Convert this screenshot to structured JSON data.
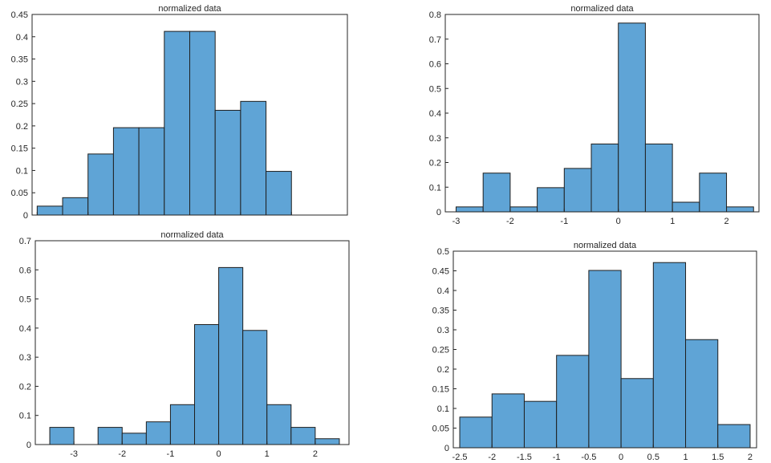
{
  "chart_data": [
    {
      "type": "bar",
      "title": "normalized data",
      "xlim": [
        -3.1,
        3.1
      ],
      "ylim": [
        0,
        0.45
      ],
      "xticks": [
        -3,
        -2,
        -1,
        0,
        1,
        2
      ],
      "xtick_labels": [
        "",
        "",
        "",
        "",
        "",
        ""
      ],
      "yticks": [
        0,
        0.05,
        0.1,
        0.15,
        0.2,
        0.25,
        0.3,
        0.35,
        0.4,
        0.45
      ],
      "ytick_labels": [
        "0",
        "0.05",
        "0.1",
        "0.15",
        "0.2",
        "0.25",
        "0.3",
        "0.35",
        "0.4",
        "0.45"
      ],
      "bin_edges": [
        -3,
        -2.5,
        -2,
        -1.5,
        -1,
        -0.5,
        0,
        0.5,
        1,
        1.5,
        2
      ],
      "values": [
        0.02,
        0.039,
        0.137,
        0.196,
        0.196,
        0.412,
        0.412,
        0.235,
        0.255,
        0.098
      ],
      "grid": false,
      "colors": {
        "bar": "#5fa4d6",
        "edge": "#1f1f1f"
      }
    },
    {
      "type": "bar",
      "title": "normalized data",
      "xlim": [
        -3.2,
        2.6
      ],
      "ylim": [
        0,
        0.8
      ],
      "xticks": [
        -3,
        -2,
        -1,
        0,
        1,
        2
      ],
      "xtick_labels": [
        "-3",
        "-2",
        "-1",
        "0",
        "1",
        "2"
      ],
      "yticks": [
        0,
        0.1,
        0.2,
        0.3,
        0.4,
        0.5,
        0.6,
        0.7,
        0.8
      ],
      "ytick_labels": [
        "0",
        "0.1",
        "0.2",
        "0.3",
        "0.4",
        "0.5",
        "0.6",
        "0.7",
        "0.8"
      ],
      "bin_edges": [
        -3,
        -2.5,
        -2,
        -1.5,
        -1,
        -0.5,
        0,
        0.5,
        1,
        1.5,
        2,
        2.5
      ],
      "values": [
        0.02,
        0.157,
        0.02,
        0.098,
        0.176,
        0.275,
        0.765,
        0.275,
        0.039,
        0.157,
        0.02
      ],
      "grid": false,
      "colors": {
        "bar": "#5fa4d6",
        "edge": "#1f1f1f"
      }
    },
    {
      "type": "bar",
      "title": "normalized data",
      "xlim": [
        -3.8,
        2.7
      ],
      "ylim": [
        0,
        0.7
      ],
      "xticks": [
        -3,
        -2,
        -1,
        0,
        1,
        2
      ],
      "xtick_labels": [
        "-3",
        "-2",
        "-1",
        "0",
        "1",
        "2"
      ],
      "yticks": [
        0,
        0.1,
        0.2,
        0.3,
        0.4,
        0.5,
        0.6,
        0.7
      ],
      "ytick_labels": [
        "0",
        "0.1",
        "0.2",
        "0.3",
        "0.4",
        "0.5",
        "0.6",
        "0.7"
      ],
      "bin_edges": [
        -3.5,
        -3,
        -2.5,
        -2,
        -1.5,
        -1,
        -0.5,
        0,
        0.5,
        1,
        1.5,
        2,
        2.5
      ],
      "values": [
        0.059,
        0,
        0.059,
        0.039,
        0.078,
        0.137,
        0.412,
        0.608,
        0.392,
        0.137,
        0.059,
        0.02
      ],
      "grid": false,
      "colors": {
        "bar": "#5fa4d6",
        "edge": "#1f1f1f"
      }
    },
    {
      "type": "bar",
      "title": "normalized data",
      "xlim": [
        -2.6,
        2.1
      ],
      "ylim": [
        0,
        0.5
      ],
      "xticks": [
        -2.5,
        -2,
        -1.5,
        -1,
        -0.5,
        0,
        0.5,
        1,
        1.5,
        2
      ],
      "xtick_labels": [
        "-2.5",
        "-2",
        "-1.5",
        "-1",
        "-0.5",
        "0",
        "0.5",
        "1",
        "1.5",
        "2"
      ],
      "yticks": [
        0,
        0.05,
        0.1,
        0.15,
        0.2,
        0.25,
        0.3,
        0.35,
        0.4,
        0.45,
        0.5
      ],
      "ytick_labels": [
        "0",
        "0.05",
        "0.1",
        "0.15",
        "0.2",
        "0.25",
        "0.3",
        "0.35",
        "0.4",
        "0.45",
        "0.5"
      ],
      "bin_edges": [
        -2.5,
        -2,
        -1.5,
        -1,
        -0.5,
        0,
        0.5,
        1,
        1.5,
        2
      ],
      "values": [
        0.078,
        0.137,
        0.118,
        0.235,
        0.451,
        0.176,
        0.471,
        0.275,
        0.059
      ],
      "grid": false,
      "colors": {
        "bar": "#5fa4d6",
        "edge": "#1f1f1f"
      }
    }
  ]
}
